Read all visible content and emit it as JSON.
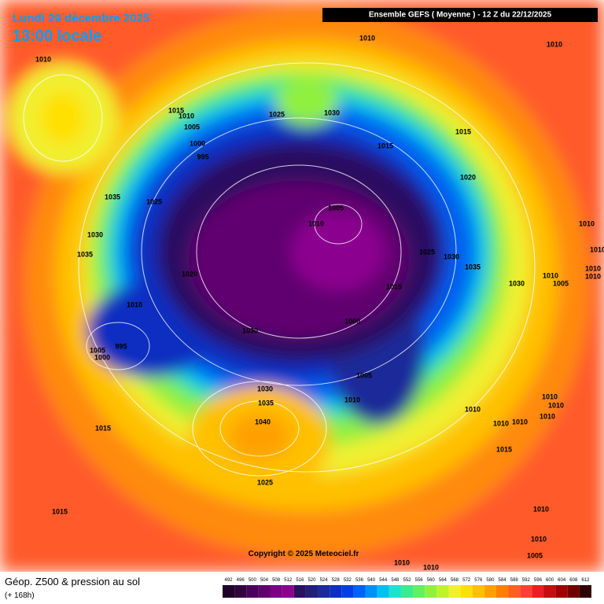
{
  "header": {
    "date": "Lundi 29 décembre 2025",
    "time": "13:00 locale",
    "run": "Ensemble GEFS  ( Moyenne )  -  12 Z du 22/12/2025"
  },
  "copyright": "Copyright © 2025 Meteociel.fr",
  "footer": {
    "title": "Géop. Z500 & pression au sol",
    "subtitle": "(+ 168h)"
  },
  "scale": {
    "levels": [
      492,
      496,
      500,
      504,
      508,
      512,
      516,
      520,
      524,
      528,
      532,
      536,
      540,
      544,
      548,
      552,
      556,
      560,
      564,
      568,
      572,
      576,
      580,
      584,
      588,
      592,
      596,
      600,
      604,
      608,
      612
    ],
    "colors": [
      "#1e0028",
      "#33003f",
      "#4a0058",
      "#600070",
      "#7a0088",
      "#8c0090",
      "#2a1060",
      "#20207a",
      "#1a2a99",
      "#0c2fc0",
      "#0040e0",
      "#0062f0",
      "#0090f5",
      "#00c0f0",
      "#20e0d0",
      "#40e890",
      "#60f060",
      "#90f040",
      "#c0f030",
      "#f0f030",
      "#ffe000",
      "#ffc000",
      "#ffa000",
      "#ff8000",
      "#ff6020",
      "#ff4030",
      "#e82020",
      "#c01010",
      "#a00000",
      "#700000",
      "#300000"
    ]
  },
  "isobar_labels": [
    1010,
    1010,
    1010,
    1015,
    1010,
    1005,
    1025,
    1030,
    1000,
    995,
    1015,
    1015,
    1020,
    1035,
    1025,
    1005,
    1010,
    1010,
    1030,
    1035,
    1025,
    1030,
    1035,
    1010,
    1020,
    1015,
    1010,
    1010,
    1010,
    1030,
    1005,
    1010,
    1000,
    1030,
    1005,
    995,
    1000,
    1005,
    1030,
    1010,
    1035,
    1010,
    1010,
    1010,
    1040,
    1010,
    1010,
    1010,
    1015,
    1015,
    1025,
    1015,
    1010,
    1010,
    1005,
    1010,
    1010
  ]
}
